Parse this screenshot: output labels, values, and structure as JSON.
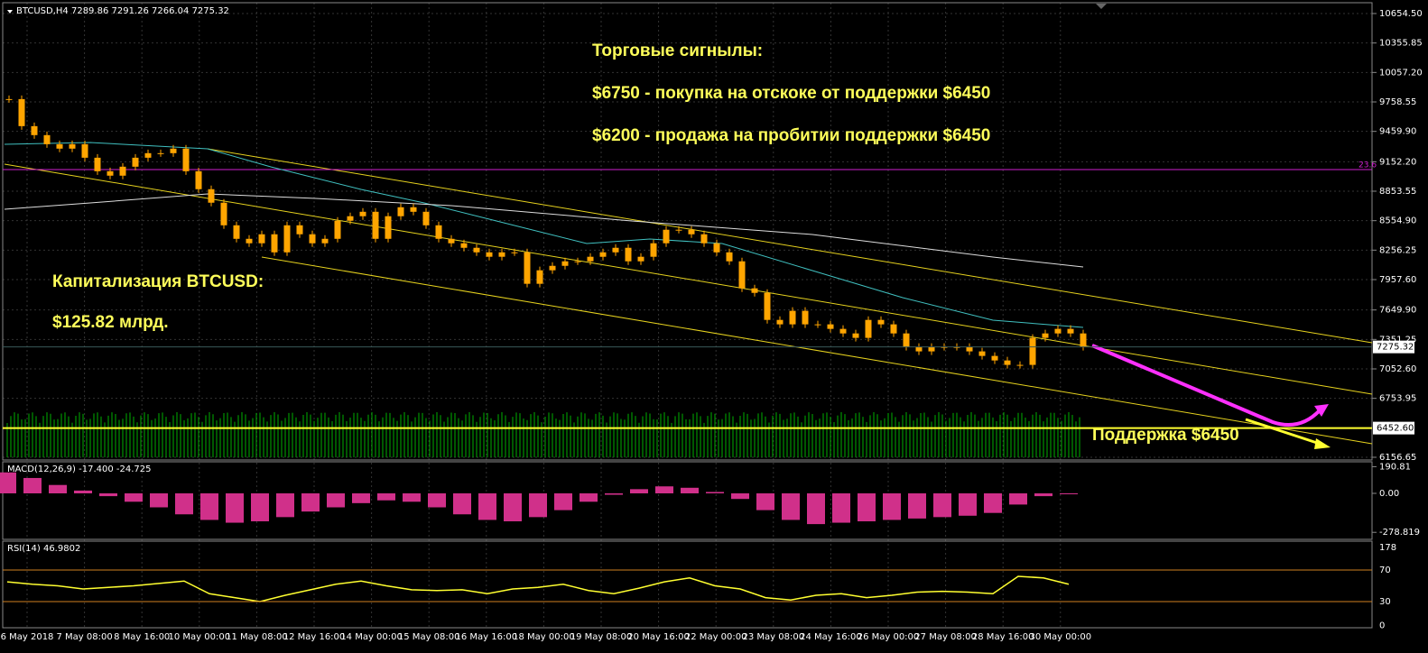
{
  "symbol_header": "BTCUSD,H4  7289.86 7291.26 7266.04 7275.32",
  "indicators": {
    "macd": "MACD(12,26,9) -17.400 -24.725",
    "rsi": "RSI(14) 46.9802"
  },
  "annotations": {
    "signals_title": "Торговые сигнылы:",
    "signal_buy": "$6750 - покупка на отскоке от  поддержки $6450",
    "signal_sell": "$6200 - продажа на пробитии поддержки $6450",
    "cap_title": "Капитализация BTCUSD:",
    "cap_value": "$125.82 млрд.",
    "support": "Поддержка $6450"
  },
  "price_axis": {
    "ticks": [
      {
        "value": 10654.5,
        "label": "10654.50"
      },
      {
        "value": 10355.85,
        "label": "10355.85"
      },
      {
        "value": 10057.2,
        "label": "10057.20"
      },
      {
        "value": 9758.55,
        "label": "9758.55"
      },
      {
        "value": 9459.9,
        "label": "9459.90"
      },
      {
        "value": 9152.2,
        "label": "9152.20"
      },
      {
        "value": 8853.55,
        "label": "8853.55"
      },
      {
        "value": 8554.9,
        "label": "8554.90"
      },
      {
        "value": 8256.25,
        "label": "8256.25"
      },
      {
        "value": 7957.6,
        "label": "7957.60"
      },
      {
        "value": 7649.9,
        "label": "7649.90"
      },
      {
        "value": 7351.25,
        "label": "7351.25"
      },
      {
        "value": 7052.6,
        "label": "7052.60"
      },
      {
        "value": 6753.95,
        "label": "6753.95"
      },
      {
        "value": 6156.65,
        "label": "6156.65"
      }
    ],
    "current": {
      "value": 7275.32,
      "label": "7275.32"
    },
    "support_level": {
      "value": 6452.6,
      "label": "6452.60"
    },
    "fib": "23.6"
  },
  "macd_axis": {
    "ticks": [
      190.81,
      {
        "value": 0,
        "label": "0.00"
      },
      -278.819
    ]
  },
  "rsi_axis": {
    "top": 178,
    "ticks": [
      70,
      30,
      0
    ]
  },
  "time_axis": [
    "6 May 2018",
    "7 May 08:00",
    "8 May 16:00",
    "10 May 00:00",
    "11 May 08:00",
    "12 May 16:00",
    "14 May 00:00",
    "15 May 08:00",
    "16 May 16:00",
    "18 May 00:00",
    "19 May 08:00",
    "20 May 16:00",
    "22 May 00:00",
    "23 May 08:00",
    "24 May 16:00",
    "26 May 00:00",
    "27 May 08:00",
    "28 May 16:00",
    "30 May 00:00"
  ],
  "price_chart": {
    "closes": [
      9787,
      9513,
      9422,
      9330,
      9285,
      9330,
      9193,
      9056,
      9011,
      9102,
      9193,
      9239,
      9239,
      9285,
      9056,
      8874,
      8737,
      8508,
      8371,
      8326,
      8417,
      8234,
      8508,
      8417,
      8326,
      8371,
      8554,
      8600,
      8645,
      8371,
      8600,
      8691,
      8645,
      8508,
      8371,
      8326,
      8280,
      8234,
      8189,
      8234,
      8234,
      7915,
      8052,
      8097,
      8143,
      8143,
      8189,
      8234,
      8280,
      8143,
      8189,
      8326,
      8463,
      8463,
      8417,
      8326,
      8234,
      8143,
      7869,
      7823,
      7549,
      7504,
      7641,
      7504,
      7504,
      7458,
      7412,
      7367,
      7549,
      7504,
      7412,
      7275,
      7230,
      7275,
      7275,
      7275,
      7230,
      7184,
      7138,
      7093,
      7093,
      7367,
      7412,
      7458,
      7412,
      7275
    ]
  },
  "macd": {
    "values": [
      150,
      110,
      60,
      20,
      -20,
      -60,
      -100,
      -150,
      -190,
      -210,
      -200,
      -170,
      -130,
      -100,
      -70,
      -50,
      -60,
      -100,
      -150,
      -190,
      -200,
      -170,
      -120,
      -60,
      -10,
      30,
      50,
      40,
      10,
      -40,
      -120,
      -190,
      -220,
      -210,
      -200,
      -190,
      -180,
      -170,
      -160,
      -140,
      -80,
      -20,
      0
    ]
  },
  "rsi": {
    "values": [
      55,
      52,
      50,
      46,
      48,
      50,
      53,
      56,
      40,
      35,
      30,
      38,
      45,
      52,
      56,
      50,
      45,
      44,
      45,
      40,
      46,
      48,
      52,
      44,
      40,
      47,
      55,
      60,
      50,
      46,
      35,
      32,
      38,
      40,
      35,
      38,
      42,
      43,
      42,
      40,
      62,
      60,
      52
    ]
  }
}
